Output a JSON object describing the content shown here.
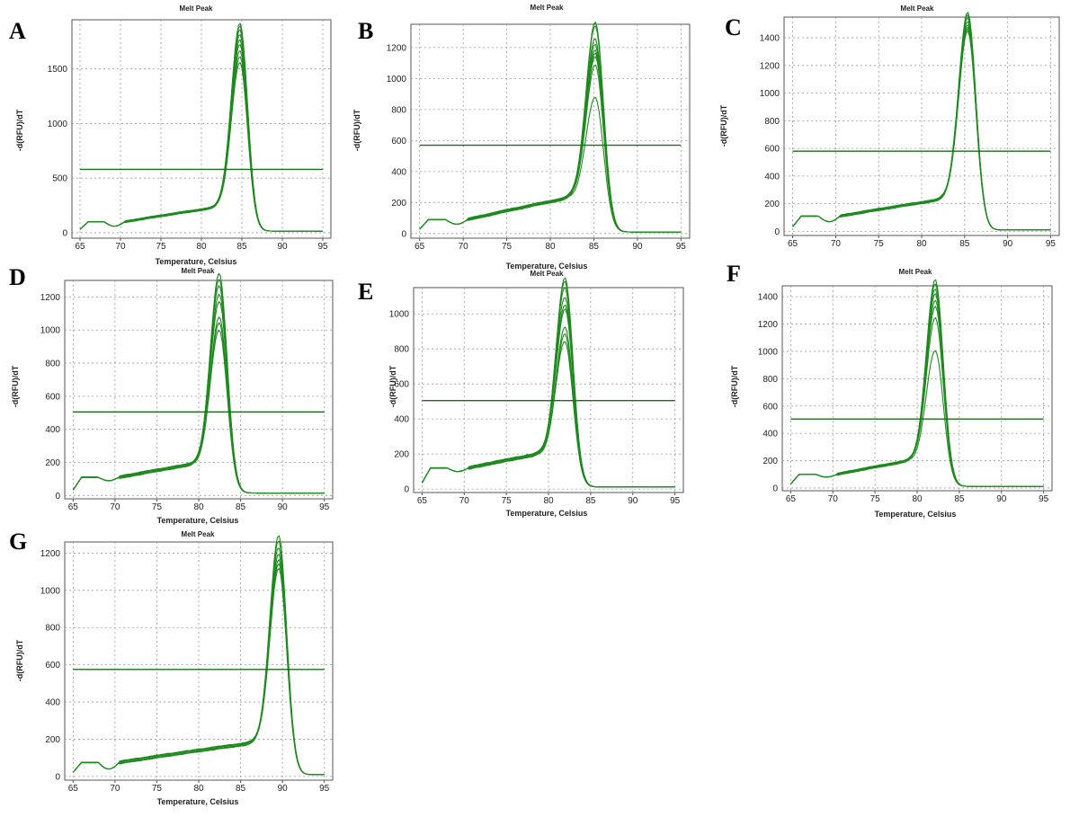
{
  "chart_data": [
    {
      "panel": "A",
      "type": "line",
      "title": "Melt Peak",
      "xlabel": "Temperature, Celsius",
      "ylabel": "-d(RFU)/dT",
      "xlim": [
        64,
        96
      ],
      "ylim": [
        -50,
        1950
      ],
      "x_ticks": [
        65,
        70,
        75,
        80,
        85,
        90,
        95
      ],
      "y_ticks": [
        0,
        500,
        1000,
        1500
      ],
      "grid": true,
      "color": "#1f8a1f",
      "threshold": 580,
      "peak_temperature": 84.8,
      "peak_heights": [
        1830,
        1800,
        1760,
        1720,
        1680,
        1640,
        1580,
        1520,
        1460
      ],
      "baseline": {
        "low_start": 100,
        "low_dip": 60,
        "plateau": 230,
        "tail": 15
      }
    },
    {
      "panel": "B",
      "type": "line",
      "title": "Melt Peak",
      "xlabel": "Temperature, Celsius",
      "ylabel": "-d(RFU)/dT",
      "xlim": [
        64,
        96
      ],
      "ylim": [
        -30,
        1350
      ],
      "x_ticks": [
        65,
        70,
        75,
        80,
        85,
        90,
        95
      ],
      "y_ticks": [
        0,
        200,
        400,
        600,
        800,
        1000,
        1200
      ],
      "grid": true,
      "color": "#1f8a1f",
      "threshold": 570,
      "peak_temperature": 85.2,
      "peak_heights": [
        1270,
        1240,
        1160,
        1130,
        1100,
        1080,
        1050,
        990,
        780
      ],
      "baseline": {
        "low_start": 90,
        "low_dip": 60,
        "plateau": 230,
        "tail": 10
      }
    },
    {
      "panel": "C",
      "type": "line",
      "title": "Melt Peak",
      "xlabel": "",
      "ylabel": "-d(RFU)/dT",
      "xlim": [
        64,
        96
      ],
      "ylim": [
        -30,
        1550
      ],
      "x_ticks": [
        65,
        70,
        75,
        80,
        85,
        90,
        95
      ],
      "y_ticks": [
        0,
        200,
        400,
        600,
        800,
        1000,
        1200,
        1400
      ],
      "grid": true,
      "color": "#1f8a1f",
      "threshold": 580,
      "peak_temperature": 85.4,
      "peak_heights": [
        1490,
        1470,
        1450,
        1430,
        1410,
        1390,
        1370,
        1350
      ],
      "baseline": {
        "low_start": 110,
        "low_dip": 70,
        "plateau": 230,
        "tail": 10
      }
    },
    {
      "panel": "D",
      "type": "line",
      "title": "Melt Peak",
      "xlabel": "Temperature, Celsius",
      "ylabel": "-d(RFU)/dT",
      "xlim": [
        64,
        96
      ],
      "ylim": [
        -20,
        1300
      ],
      "x_ticks": [
        65,
        70,
        75,
        80,
        85,
        90,
        95
      ],
      "y_ticks": [
        0,
        200,
        400,
        600,
        800,
        1000,
        1200
      ],
      "grid": true,
      "color": "#1f8a1f",
      "threshold": 505,
      "peak_temperature": 82.5,
      "peak_heights": [
        1260,
        1230,
        1200,
        1150,
        1100,
        1000,
        960,
        920
      ],
      "baseline": {
        "low_start": 110,
        "low_dip": 90,
        "plateau": 190,
        "tail": 15
      }
    },
    {
      "panel": "E",
      "type": "line",
      "title": "Melt Peak",
      "xlabel": "Temperature, Celsius",
      "ylabel": "-d(RFU)/dT",
      "xlim": [
        64,
        96
      ],
      "ylim": [
        -20,
        1150
      ],
      "x_ticks": [
        65,
        70,
        75,
        80,
        85,
        90,
        95
      ],
      "y_ticks": [
        0,
        200,
        400,
        600,
        800,
        1000
      ],
      "grid": true,
      "color": "#1f8a1f",
      "threshold": 505,
      "peak_temperature": 82.0,
      "peak_heights": [
        1120,
        1100,
        1070,
        1020,
        980,
        950,
        840,
        800,
        760
      ],
      "baseline": {
        "low_start": 120,
        "low_dip": 100,
        "plateau": 200,
        "tail": 12
      }
    },
    {
      "panel": "F",
      "type": "line",
      "title": "Melt Peak",
      "xlabel": "Temperature, Celsius",
      "ylabel": "-d(RFU)/dT",
      "xlim": [
        64,
        96
      ],
      "ylim": [
        -20,
        1480
      ],
      "x_ticks": [
        65,
        70,
        75,
        80,
        85,
        90,
        95
      ],
      "y_ticks": [
        0,
        200,
        400,
        600,
        800,
        1000,
        1200,
        1400
      ],
      "grid": true,
      "color": "#1f8a1f",
      "threshold": 505,
      "peak_temperature": 82.2,
      "peak_heights": [
        1440,
        1410,
        1380,
        1350,
        1300,
        1250,
        1160,
        920
      ],
      "baseline": {
        "low_start": 100,
        "low_dip": 80,
        "plateau": 200,
        "tail": 12
      }
    },
    {
      "panel": "G",
      "type": "line",
      "title": "Melt Peak",
      "xlabel": "Temperature, Celsius",
      "ylabel": "-d(RFU)/dT",
      "xlim": [
        64,
        96
      ],
      "ylim": [
        -20,
        1260
      ],
      "x_ticks": [
        65,
        70,
        75,
        80,
        85,
        90,
        95
      ],
      "y_ticks": [
        0,
        200,
        400,
        600,
        800,
        1000,
        1200
      ],
      "grid": true,
      "color": "#1f8a1f",
      "threshold": 575,
      "peak_temperature": 89.6,
      "peak_heights": [
        1215,
        1190,
        1160,
        1130,
        1100,
        1070,
        1040
      ],
      "baseline": {
        "low_start": 75,
        "low_dip": 40,
        "plateau": 180,
        "tail": 10
      }
    }
  ]
}
